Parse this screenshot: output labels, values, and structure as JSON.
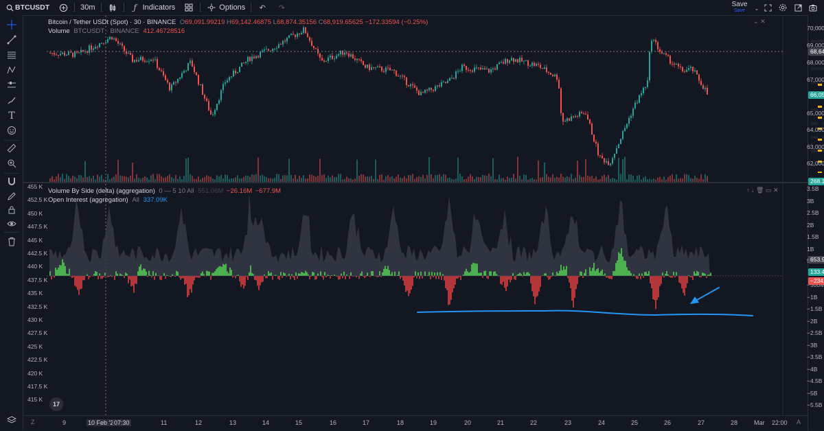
{
  "toolbar": {
    "symbol": "BTCUSDT",
    "interval": "30m",
    "indicators_label": "Indicators",
    "options_label": "Options",
    "save_label": "Save",
    "save_sub": "Save"
  },
  "main_pane": {
    "title": "Bitcoin / Tether USDt (Spot) · 30 · BINANCE",
    "ohlc": {
      "o": "69,091.99219",
      "h": "69,142.46875",
      "l": "68,874.35156",
      "c": "68,919.65625",
      "chg": "−172.33594 (−0.25%)"
    },
    "volume_label": "Volume",
    "volume_source": "BTCUSDT · BINANCE",
    "volume_value": "412.46728516",
    "price_scale": [
      "70,000.00000",
      "69,000.00000",
      "68,000.00000",
      "67,000.00000",
      "66,000.00000",
      "65,000.00000",
      "64,000.00000",
      "63,000.00000",
      "62,000.00000"
    ],
    "crosshair_price": "68,645.72072",
    "last_price": "66,056.89063",
    "volume_tag": "268.19421387"
  },
  "lower_pane": {
    "vbs_label": "Volume By Side (delta) (aggregation)",
    "vbs_params": "0 — 5 10 All",
    "vbs_v1": "551.06M",
    "vbs_v2": "−26.16M",
    "vbs_v3": "−677.9M",
    "oi_label": "Open Interest (aggregation)",
    "oi_param": "All",
    "oi_value": "337.09K",
    "right_scale": [
      "3.5B",
      "3B",
      "2.5B",
      "2B",
      "1.5B",
      "1B",
      "500M",
      "0",
      "−500M",
      "−1B",
      "−1.5B",
      "−2B",
      "−2.5B",
      "−3B",
      "−3.5B",
      "−4B",
      "−4.5B",
      "−5B",
      "−5.5B"
    ],
    "left_scale": [
      "455 K",
      "452.5 K",
      "450 K",
      "447.5 K",
      "445 K",
      "442.5 K",
      "440 K",
      "437.5 K",
      "435 K",
      "432.5 K",
      "430 K",
      "427.5 K",
      "425 K",
      "422.5 K",
      "420 K",
      "417.5 K",
      "415 K"
    ],
    "tag_oi": "653.95M",
    "tag_green": "133.48M",
    "tag_red": "−234.95M"
  },
  "time_axis": {
    "labels": [
      "9",
      "10 Feb '26",
      "07:30",
      "11",
      "12",
      "13",
      "14",
      "15",
      "16",
      "17",
      "18",
      "19",
      "20",
      "21",
      "22",
      "23",
      "24",
      "25",
      "26",
      "27",
      "28",
      "Mar",
      "22:00"
    ]
  },
  "colors": {
    "up": "#26a69a",
    "down": "#ef5350",
    "delta_pos": "#4caf50",
    "delta_neg": "#b2363a",
    "oi_area": "#363a45",
    "annotation": "#2196f3",
    "background": "#131722"
  },
  "icons": [
    "search-icon",
    "add-symbol-icon",
    "bar-style-icon",
    "indicators-icon",
    "templates-icon",
    "options-icon",
    "undo-icon",
    "redo-icon",
    "fullscreen-icon",
    "settings-icon",
    "camera-icon",
    "crosshair-icon",
    "trendline-icon",
    "fib-icon",
    "pattern-icon",
    "ruler-icon",
    "zoom-icon",
    "magnet-icon",
    "lock-icon",
    "eye-icon",
    "trash-icon"
  ]
}
